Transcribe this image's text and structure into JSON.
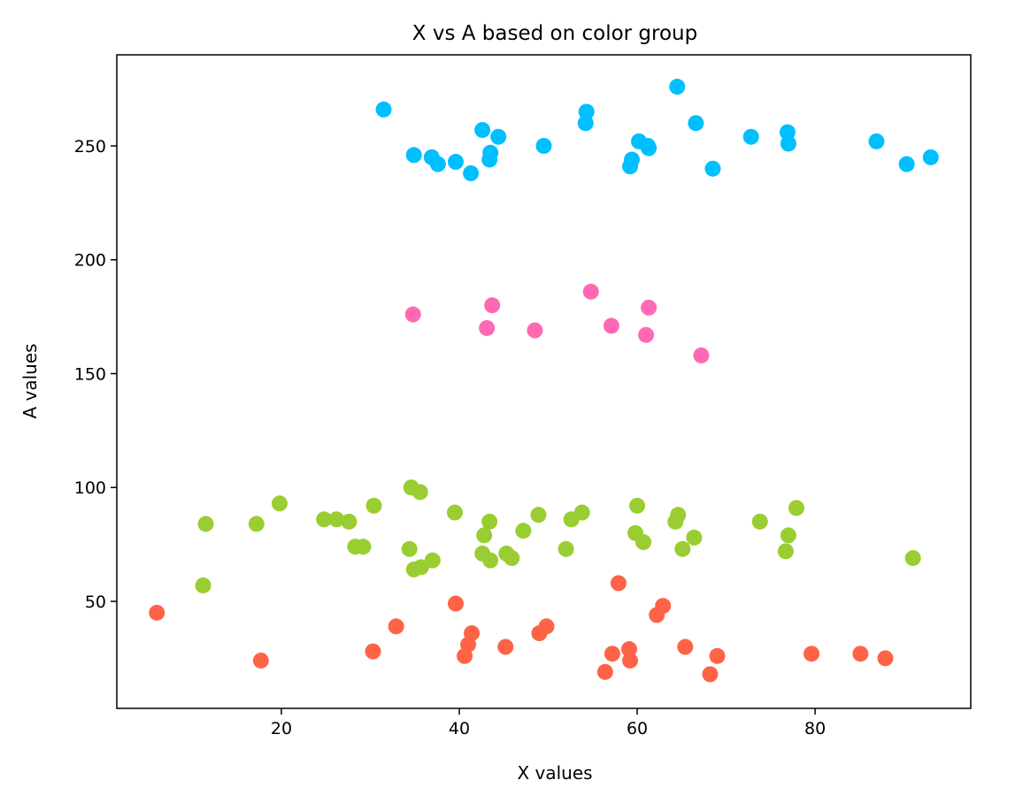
{
  "chart_data": {
    "type": "scatter",
    "title": "X vs A based on color group",
    "xlabel": "X values",
    "ylabel": "A values",
    "xlim": [
      1.5,
      97.5
    ],
    "ylim": [
      3,
      290
    ],
    "xticks": [
      20,
      40,
      60,
      80
    ],
    "yticks": [
      50,
      100,
      150,
      200,
      250
    ],
    "grid": false,
    "series": [
      {
        "color": "#00bfff",
        "points": [
          [
            31.5,
            266
          ],
          [
            34.9,
            246
          ],
          [
            36.9,
            245
          ],
          [
            37.6,
            242
          ],
          [
            39.6,
            243
          ],
          [
            41.3,
            238
          ],
          [
            42.6,
            257
          ],
          [
            43.5,
            247
          ],
          [
            43.4,
            244
          ],
          [
            44.4,
            254
          ],
          [
            49.5,
            250
          ],
          [
            54.2,
            260
          ],
          [
            54.3,
            265
          ],
          [
            59.2,
            241
          ],
          [
            59.4,
            244
          ],
          [
            60.2,
            252
          ],
          [
            61.2,
            250
          ],
          [
            61.3,
            249
          ],
          [
            64.5,
            276
          ],
          [
            66.6,
            260
          ],
          [
            68.5,
            240
          ],
          [
            72.8,
            254
          ],
          [
            76.9,
            256
          ],
          [
            77.0,
            251
          ],
          [
            86.9,
            252
          ],
          [
            90.3,
            242
          ],
          [
            93.0,
            245
          ]
        ]
      },
      {
        "color": "#ff69b4",
        "points": [
          [
            34.8,
            176
          ],
          [
            43.1,
            170
          ],
          [
            43.7,
            180
          ],
          [
            48.5,
            169
          ],
          [
            54.8,
            186
          ],
          [
            57.1,
            171
          ],
          [
            61.0,
            167
          ],
          [
            61.3,
            179
          ],
          [
            67.2,
            158
          ]
        ]
      },
      {
        "color": "#9acd32",
        "points": [
          [
            11.2,
            57
          ],
          [
            11.5,
            84
          ],
          [
            17.2,
            84
          ],
          [
            19.8,
            93
          ],
          [
            24.8,
            86
          ],
          [
            26.2,
            86
          ],
          [
            27.6,
            85
          ],
          [
            28.3,
            74
          ],
          [
            29.2,
            74
          ],
          [
            30.4,
            92
          ],
          [
            34.4,
            73
          ],
          [
            34.6,
            100
          ],
          [
            34.9,
            64
          ],
          [
            35.6,
            98
          ],
          [
            35.7,
            65
          ],
          [
            37.0,
            68
          ],
          [
            39.5,
            89
          ],
          [
            42.6,
            71
          ],
          [
            42.8,
            79
          ],
          [
            43.4,
            85
          ],
          [
            43.5,
            68
          ],
          [
            45.3,
            71
          ],
          [
            45.9,
            69
          ],
          [
            47.2,
            81
          ],
          [
            48.9,
            88
          ],
          [
            52.0,
            73
          ],
          [
            52.6,
            86
          ],
          [
            53.8,
            89
          ],
          [
            59.8,
            80
          ],
          [
            60.0,
            92
          ],
          [
            60.7,
            76
          ],
          [
            64.3,
            85
          ],
          [
            64.6,
            88
          ],
          [
            65.1,
            73
          ],
          [
            66.4,
            78
          ],
          [
            73.8,
            85
          ],
          [
            76.7,
            72
          ],
          [
            77.0,
            79
          ],
          [
            77.9,
            91
          ],
          [
            91.0,
            69
          ]
        ]
      },
      {
        "color": "#ff6347",
        "points": [
          [
            6.0,
            45
          ],
          [
            17.7,
            24
          ],
          [
            30.3,
            28
          ],
          [
            32.9,
            39
          ],
          [
            39.6,
            49
          ],
          [
            40.6,
            26
          ],
          [
            41.0,
            31
          ],
          [
            41.4,
            36
          ],
          [
            45.2,
            30
          ],
          [
            49.0,
            36
          ],
          [
            49.8,
            39
          ],
          [
            56.4,
            19
          ],
          [
            57.2,
            27
          ],
          [
            57.9,
            58
          ],
          [
            59.1,
            29
          ],
          [
            59.2,
            24
          ],
          [
            62.2,
            44
          ],
          [
            62.9,
            48
          ],
          [
            65.4,
            30
          ],
          [
            68.2,
            18
          ],
          [
            69.0,
            26
          ],
          [
            79.6,
            27
          ],
          [
            85.1,
            27
          ],
          [
            87.9,
            25
          ]
        ]
      }
    ]
  }
}
